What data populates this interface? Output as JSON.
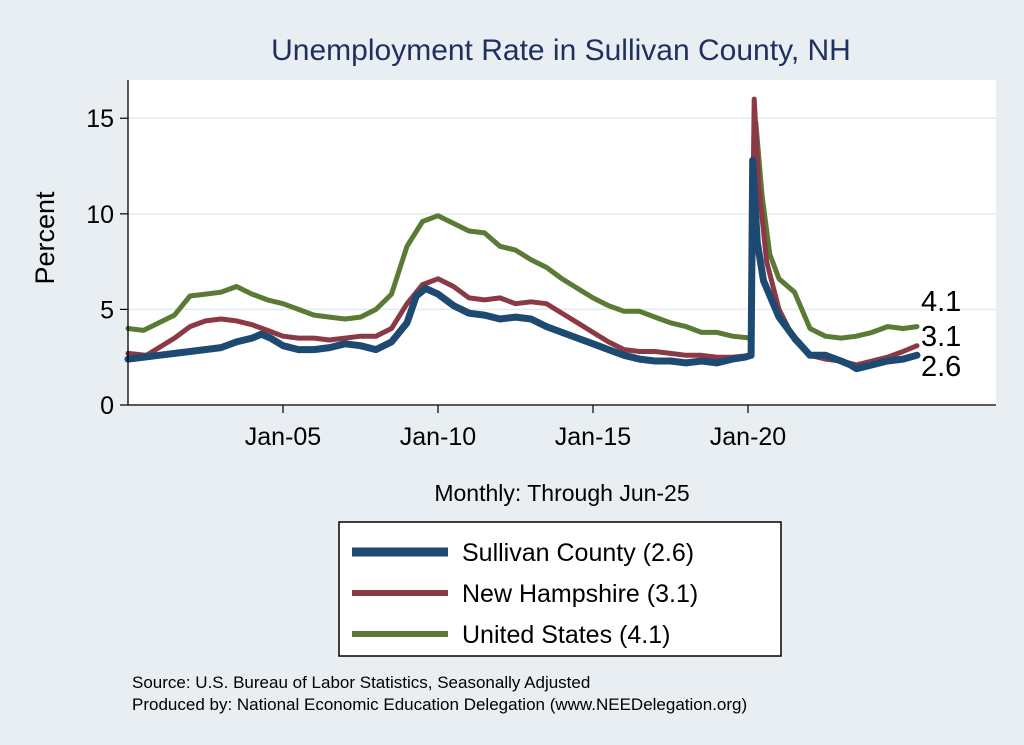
{
  "chart_data": {
    "type": "line",
    "title": "Unemployment Rate in Sullivan  County, NH",
    "ylabel": "Percent",
    "xlabel": "Monthly: Through Jun-25",
    "ylim": [
      0,
      17
    ],
    "xlim": [
      2000.0,
      2028.0
    ],
    "y_ticks": [
      0,
      5,
      10,
      15
    ],
    "x_ticks": [
      {
        "value": 2005.0,
        "label": "Jan-05"
      },
      {
        "value": 2010.0,
        "label": "Jan-10"
      },
      {
        "value": 2015.0,
        "label": "Jan-15"
      },
      {
        "value": 2020.0,
        "label": "Jan-20"
      }
    ],
    "grid": true,
    "legend_position": "bottom",
    "series": [
      {
        "name": "Sullivan  County (2.6)",
        "color": "#1e4a72",
        "end_label": "2.6",
        "points": [
          [
            2000.0,
            2.4
          ],
          [
            2001.0,
            2.6
          ],
          [
            2002.0,
            2.8
          ],
          [
            2003.0,
            3.0
          ],
          [
            2003.5,
            3.3
          ],
          [
            2004.0,
            3.5
          ],
          [
            2004.3,
            3.7
          ],
          [
            2004.6,
            3.5
          ],
          [
            2005.0,
            3.1
          ],
          [
            2005.5,
            2.9
          ],
          [
            2006.0,
            2.9
          ],
          [
            2006.5,
            3.0
          ],
          [
            2007.0,
            3.2
          ],
          [
            2007.5,
            3.1
          ],
          [
            2008.0,
            2.9
          ],
          [
            2008.5,
            3.3
          ],
          [
            2009.0,
            4.3
          ],
          [
            2009.3,
            5.7
          ],
          [
            2009.6,
            6.1
          ],
          [
            2010.0,
            5.8
          ],
          [
            2010.5,
            5.2
          ],
          [
            2011.0,
            4.8
          ],
          [
            2011.5,
            4.7
          ],
          [
            2012.0,
            4.5
          ],
          [
            2012.5,
            4.6
          ],
          [
            2013.0,
            4.5
          ],
          [
            2013.5,
            4.1
          ],
          [
            2014.0,
            3.8
          ],
          [
            2014.5,
            3.5
          ],
          [
            2015.0,
            3.2
          ],
          [
            2015.5,
            2.9
          ],
          [
            2016.0,
            2.6
          ],
          [
            2016.5,
            2.4
          ],
          [
            2017.0,
            2.3
          ],
          [
            2017.5,
            2.3
          ],
          [
            2018.0,
            2.2
          ],
          [
            2018.5,
            2.3
          ],
          [
            2019.0,
            2.2
          ],
          [
            2019.5,
            2.4
          ],
          [
            2019.9,
            2.5
          ],
          [
            2020.1,
            2.6
          ],
          [
            2020.15,
            12.8
          ],
          [
            2020.3,
            8.5
          ],
          [
            2020.5,
            6.5
          ],
          [
            2021.0,
            4.6
          ],
          [
            2021.5,
            3.5
          ],
          [
            2022.0,
            2.6
          ],
          [
            2022.5,
            2.6
          ],
          [
            2023.0,
            2.3
          ],
          [
            2023.3,
            2.1
          ],
          [
            2023.5,
            1.9
          ],
          [
            2024.0,
            2.1
          ],
          [
            2024.5,
            2.3
          ],
          [
            2025.0,
            2.4
          ],
          [
            2025.45,
            2.6
          ]
        ]
      },
      {
        "name": "New Hampshire (3.1)",
        "color": "#8b3a45",
        "end_label": "3.1",
        "points": [
          [
            2000.0,
            2.7
          ],
          [
            2000.6,
            2.6
          ],
          [
            2001.0,
            3.0
          ],
          [
            2001.5,
            3.5
          ],
          [
            2002.0,
            4.1
          ],
          [
            2002.5,
            4.4
          ],
          [
            2003.0,
            4.5
          ],
          [
            2003.5,
            4.4
          ],
          [
            2004.0,
            4.2
          ],
          [
            2004.5,
            3.9
          ],
          [
            2005.0,
            3.6
          ],
          [
            2005.5,
            3.5
          ],
          [
            2006.0,
            3.5
          ],
          [
            2006.5,
            3.4
          ],
          [
            2007.0,
            3.5
          ],
          [
            2007.5,
            3.6
          ],
          [
            2008.0,
            3.6
          ],
          [
            2008.5,
            4.0
          ],
          [
            2009.0,
            5.3
          ],
          [
            2009.5,
            6.3
          ],
          [
            2010.0,
            6.6
          ],
          [
            2010.5,
            6.2
          ],
          [
            2011.0,
            5.6
          ],
          [
            2011.5,
            5.5
          ],
          [
            2012.0,
            5.6
          ],
          [
            2012.5,
            5.3
          ],
          [
            2013.0,
            5.4
          ],
          [
            2013.5,
            5.3
          ],
          [
            2014.0,
            4.8
          ],
          [
            2014.5,
            4.3
          ],
          [
            2015.0,
            3.8
          ],
          [
            2015.5,
            3.3
          ],
          [
            2016.0,
            2.9
          ],
          [
            2016.5,
            2.8
          ],
          [
            2017.0,
            2.8
          ],
          [
            2017.5,
            2.7
          ],
          [
            2018.0,
            2.6
          ],
          [
            2018.5,
            2.6
          ],
          [
            2019.0,
            2.5
          ],
          [
            2019.5,
            2.5
          ],
          [
            2020.1,
            2.6
          ],
          [
            2020.2,
            16.0
          ],
          [
            2020.35,
            11.5
          ],
          [
            2020.6,
            7.5
          ],
          [
            2021.0,
            5.0
          ],
          [
            2021.5,
            3.4
          ],
          [
            2022.0,
            2.6
          ],
          [
            2022.5,
            2.4
          ],
          [
            2023.0,
            2.3
          ],
          [
            2023.5,
            2.1
          ],
          [
            2024.0,
            2.3
          ],
          [
            2024.5,
            2.5
          ],
          [
            2025.0,
            2.8
          ],
          [
            2025.45,
            3.1
          ]
        ]
      },
      {
        "name": "United States (4.1)",
        "color": "#5a7a35",
        "end_label": "4.1",
        "points": [
          [
            2000.0,
            4.0
          ],
          [
            2000.5,
            3.9
          ],
          [
            2001.0,
            4.3
          ],
          [
            2001.5,
            4.7
          ],
          [
            2002.0,
            5.7
          ],
          [
            2002.5,
            5.8
          ],
          [
            2003.0,
            5.9
          ],
          [
            2003.5,
            6.2
          ],
          [
            2004.0,
            5.8
          ],
          [
            2004.5,
            5.5
          ],
          [
            2005.0,
            5.3
          ],
          [
            2005.5,
            5.0
          ],
          [
            2006.0,
            4.7
          ],
          [
            2006.5,
            4.6
          ],
          [
            2007.0,
            4.5
          ],
          [
            2007.5,
            4.6
          ],
          [
            2008.0,
            5.0
          ],
          [
            2008.5,
            5.8
          ],
          [
            2009.0,
            8.3
          ],
          [
            2009.5,
            9.6
          ],
          [
            2010.0,
            9.9
          ],
          [
            2010.5,
            9.5
          ],
          [
            2011.0,
            9.1
          ],
          [
            2011.5,
            9.0
          ],
          [
            2012.0,
            8.3
          ],
          [
            2012.5,
            8.1
          ],
          [
            2013.0,
            7.6
          ],
          [
            2013.5,
            7.2
          ],
          [
            2014.0,
            6.6
          ],
          [
            2014.5,
            6.1
          ],
          [
            2015.0,
            5.6
          ],
          [
            2015.5,
            5.2
          ],
          [
            2016.0,
            4.9
          ],
          [
            2016.5,
            4.9
          ],
          [
            2017.0,
            4.6
          ],
          [
            2017.5,
            4.3
          ],
          [
            2018.0,
            4.1
          ],
          [
            2018.5,
            3.8
          ],
          [
            2019.0,
            3.8
          ],
          [
            2019.5,
            3.6
          ],
          [
            2020.1,
            3.5
          ],
          [
            2020.25,
            14.8
          ],
          [
            2020.45,
            11.0
          ],
          [
            2020.7,
            7.9
          ],
          [
            2021.0,
            6.6
          ],
          [
            2021.5,
            5.9
          ],
          [
            2022.0,
            4.0
          ],
          [
            2022.5,
            3.6
          ],
          [
            2023.0,
            3.5
          ],
          [
            2023.5,
            3.6
          ],
          [
            2024.0,
            3.8
          ],
          [
            2024.5,
            4.1
          ],
          [
            2025.0,
            4.0
          ],
          [
            2025.45,
            4.1
          ]
        ]
      }
    ]
  },
  "footer": {
    "source": "Source: U.S. Bureau of Labor Statistics, Seasonally Adjusted",
    "produced_by": "Produced by: National Economic Education Delegation (www.NEEDelegation.org)"
  }
}
